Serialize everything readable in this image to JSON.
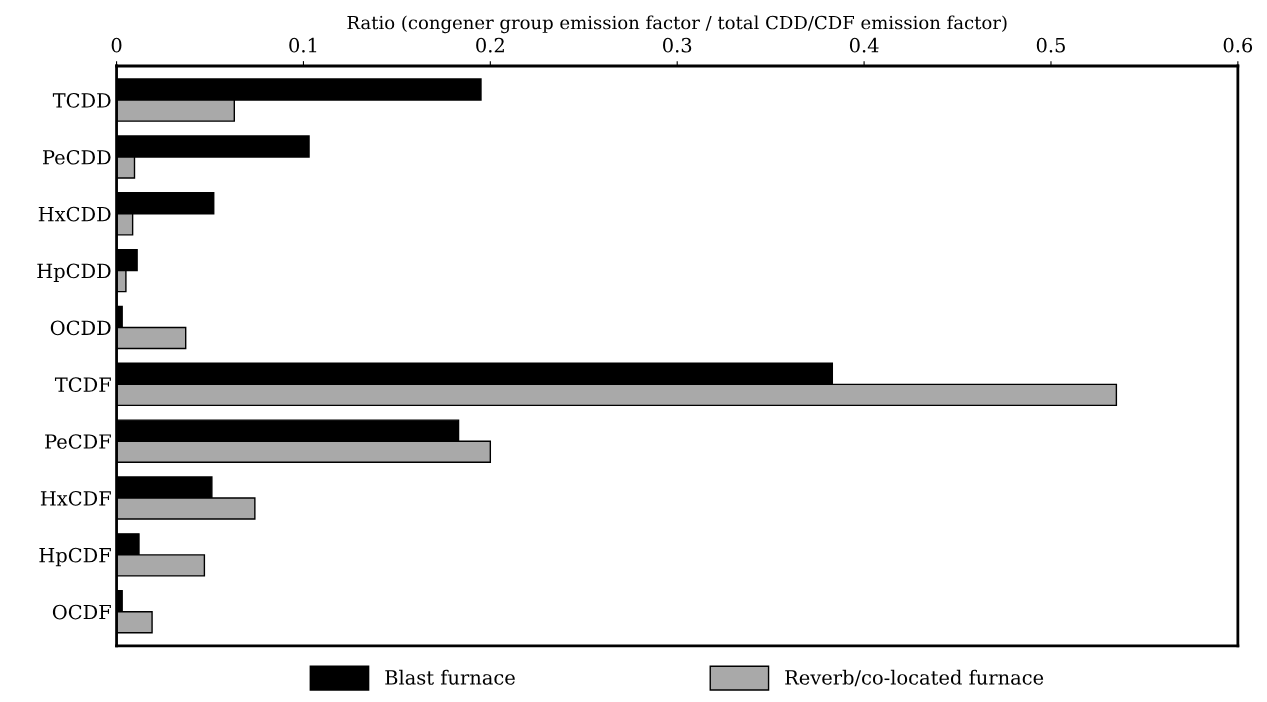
{
  "chart_data": {
    "type": "bar",
    "orientation": "horizontal",
    "xlabel": "Ratio (congener group emission factor / total CDD/CDF emission factor)",
    "categories": [
      "TCDD",
      "PeCDD",
      "HxCDD",
      "HpCDD",
      "OCDD",
      "TCDF",
      "PeCDF",
      "HxCDF",
      "HpCDF",
      "OCDF"
    ],
    "series": [
      {
        "name": "Blast furnace",
        "color": "#000000",
        "values": [
          0.195,
          0.103,
          0.052,
          0.011,
          0.003,
          0.383,
          0.183,
          0.051,
          0.012,
          0.003
        ]
      },
      {
        "name": "Reverb/co-located furnace",
        "color": "#a9a9a9",
        "values": [
          0.063,
          0.0096,
          0.0086,
          0.005,
          0.037,
          0.535,
          0.2,
          0.074,
          0.047,
          0.019
        ]
      }
    ],
    "xlim": [
      0,
      0.6
    ],
    "xticks": [
      0,
      0.1,
      0.2,
      0.3,
      0.4,
      0.5,
      0.6
    ],
    "grid": false,
    "legend": "bottom"
  }
}
